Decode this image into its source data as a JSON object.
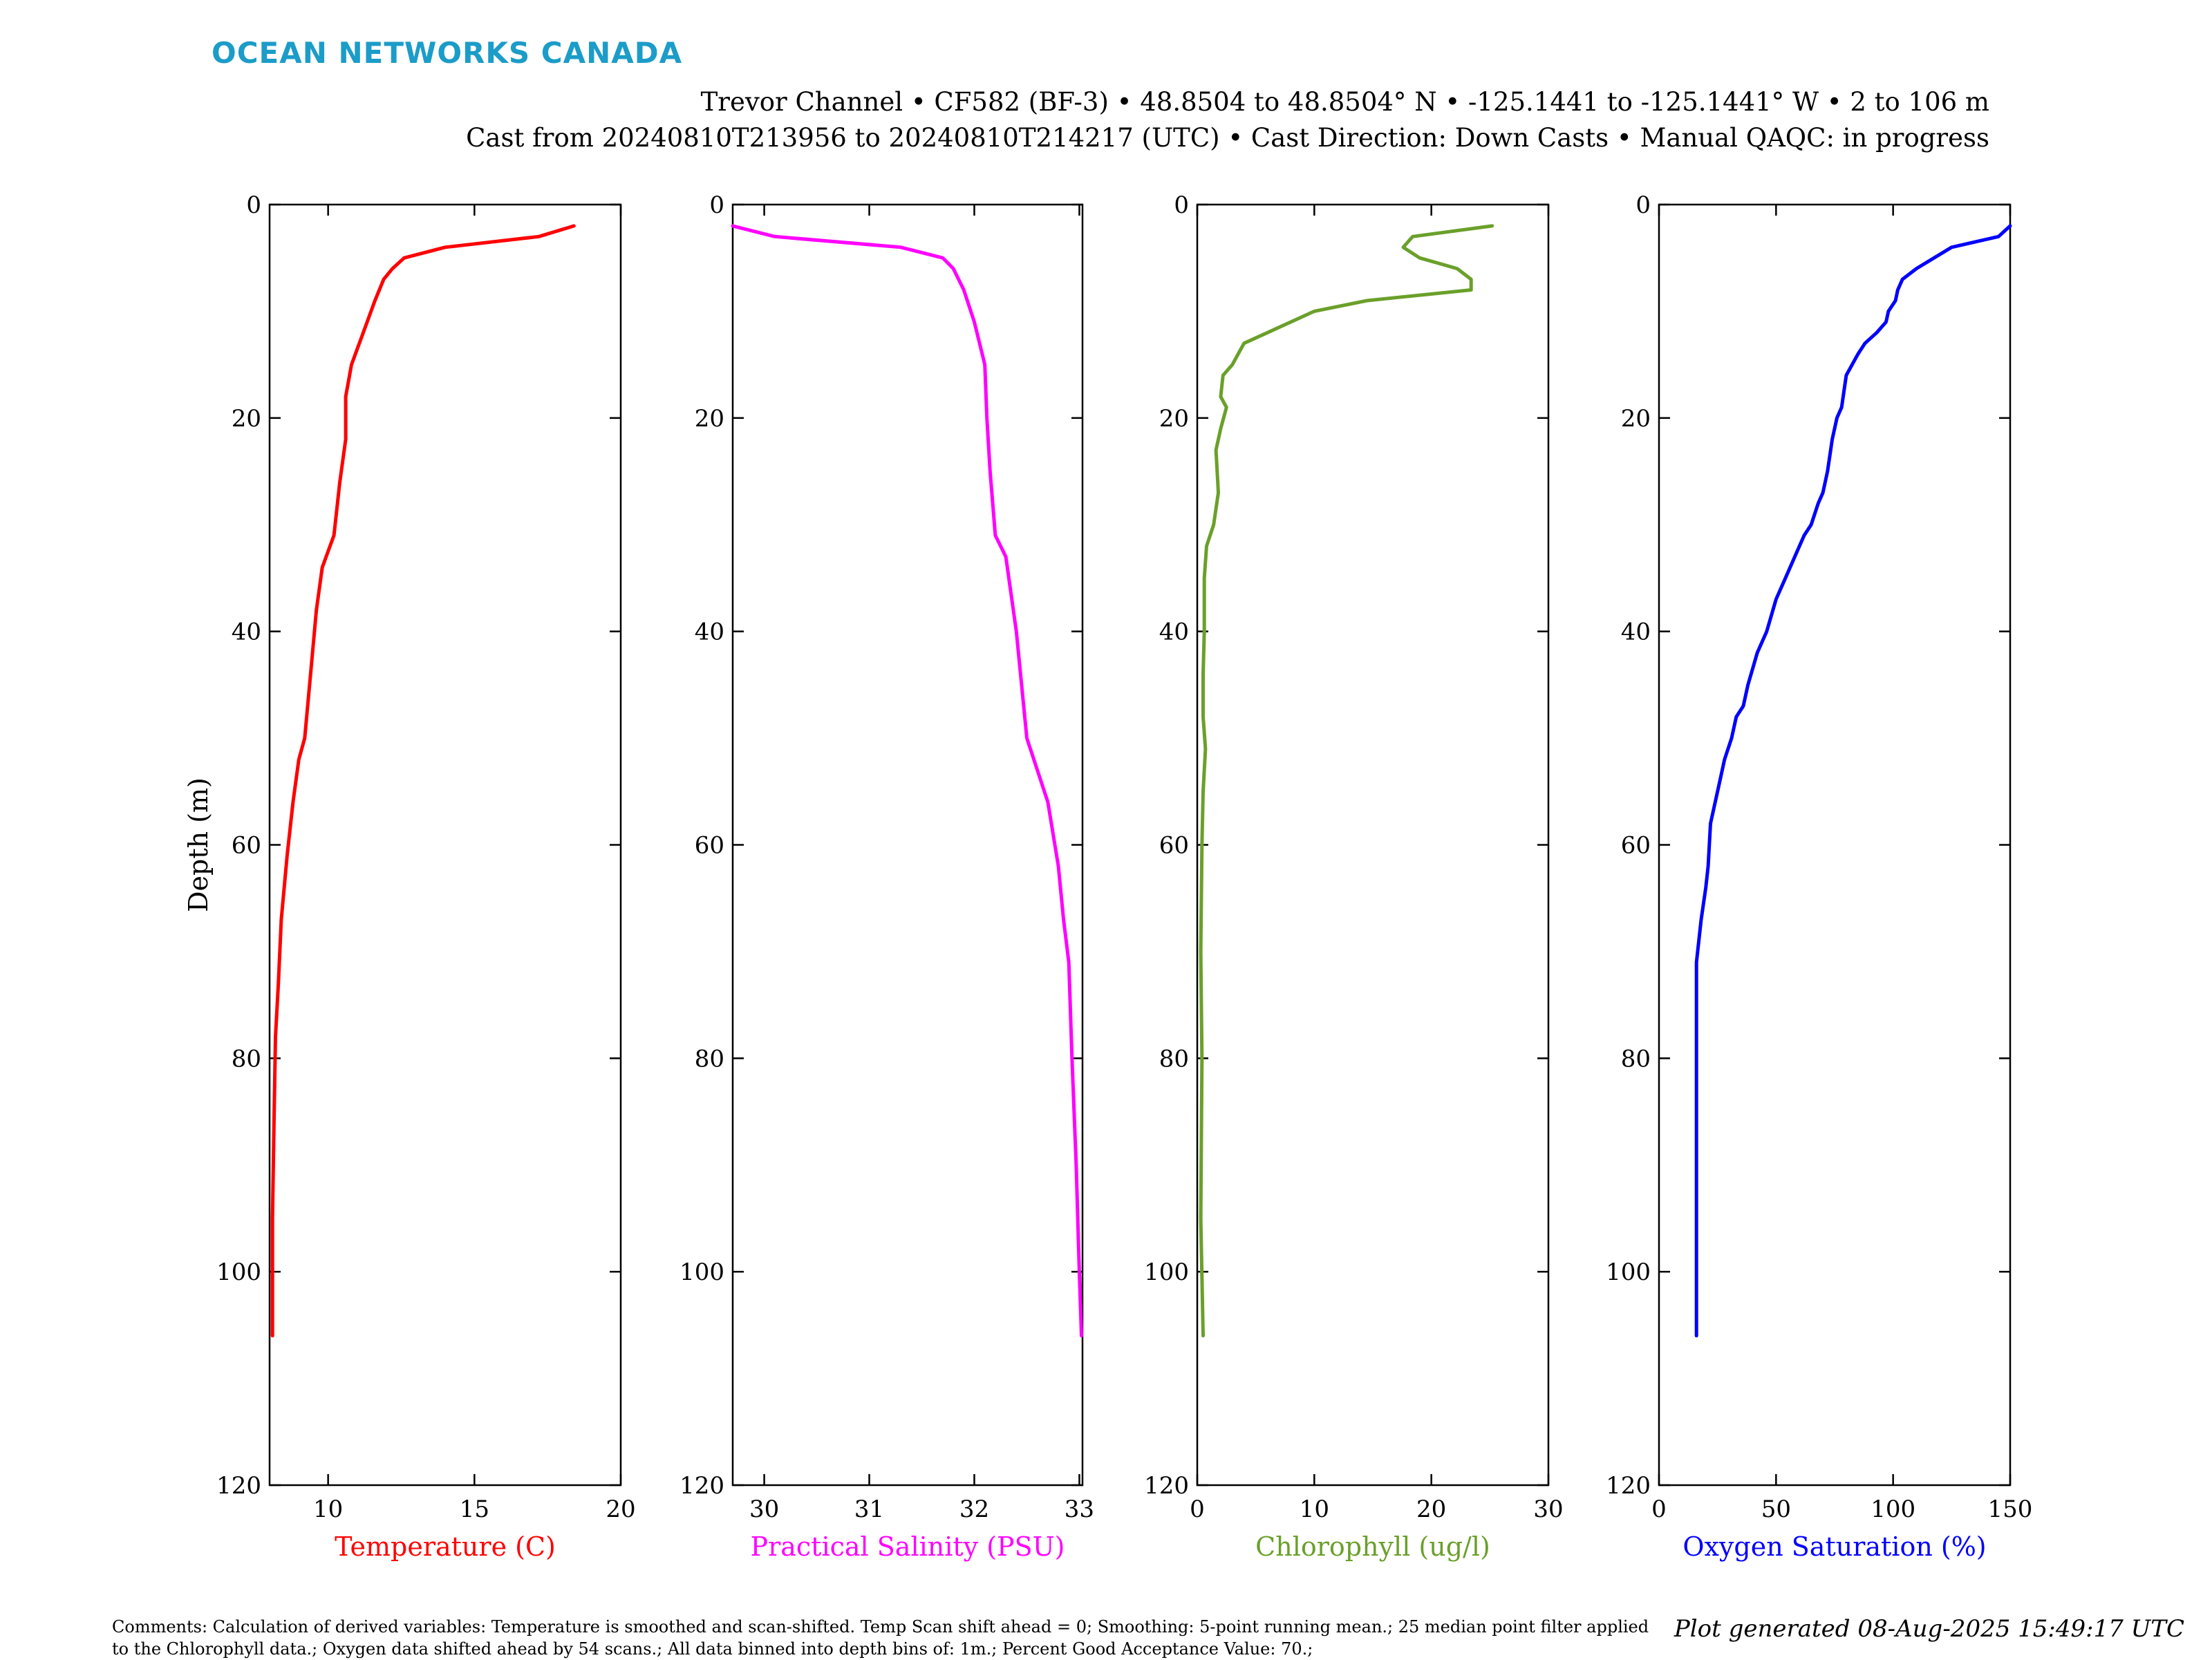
{
  "brand": "OCEAN NETWORKS CANADA",
  "title_line1": "Trevor Channel • CF582 (BF-3) • 48.8504 to 48.8504° N • -125.1441 to -125.1441° W • 2 to 106 m",
  "title_line2": "Cast from 20240810T213956 to 20240810T214217 (UTC) • Cast Direction: Down Casts • Manual QAQC: in progress",
  "comments": "Comments: Calculation of derived variables: Temperature is smoothed and scan-shifted. Temp Scan shift ahead = 0; Smoothing: 5-point running mean.; 25 median point filter applied to the Chlorophyll data.; Oxygen data shifted ahead by 54 scans.; All data binned into depth bins of: 1m.; Percent Good Acceptance Value: 70.;",
  "generated": "Plot generated 08-Aug-2025 15:49:17 UTC",
  "chart_data": [
    {
      "type": "line",
      "ylabel": "Depth (m)",
      "xlabel": "Temperature (C)",
      "color": "#ff0000",
      "xlim": [
        8,
        20
      ],
      "ylim": [
        0,
        120
      ],
      "y_reversed": true,
      "xticks": [
        10,
        15,
        20
      ],
      "yticks": [
        0,
        20,
        40,
        60,
        80,
        100,
        120
      ],
      "x": [
        18.4,
        17.2,
        14.0,
        12.6,
        12.2,
        11.9,
        11.6,
        11.2,
        10.8,
        10.6,
        10.6,
        10.4,
        10.2,
        9.8,
        9.6,
        9.4,
        9.2,
        9.0,
        8.8,
        8.6,
        8.4,
        8.3,
        8.2,
        8.15,
        8.1,
        8.1
      ],
      "y": [
        2,
        3,
        4,
        5,
        6,
        7,
        9,
        12,
        15,
        18,
        22,
        26,
        31,
        34,
        38,
        44,
        50,
        52,
        56,
        61,
        67,
        73,
        78,
        86,
        95,
        106
      ]
    },
    {
      "type": "line",
      "ylabel": "",
      "xlabel": "Practical Salinity (PSU)",
      "color": "#ff00ff",
      "xlim": [
        29.7,
        33.03
      ],
      "ylim": [
        0,
        120
      ],
      "y_reversed": true,
      "xticks": [
        30,
        31,
        32,
        33
      ],
      "yticks": [
        0,
        20,
        40,
        60,
        80,
        100,
        120
      ],
      "x": [
        29.7,
        30.1,
        31.3,
        31.7,
        31.8,
        31.9,
        32.0,
        32.1,
        32.12,
        32.15,
        32.2,
        32.3,
        32.4,
        32.45,
        32.5,
        32.6,
        32.7,
        32.8,
        32.85,
        32.9,
        32.93,
        32.97,
        33.0,
        33.02
      ],
      "y": [
        2,
        3,
        4,
        5,
        6,
        8,
        11,
        15,
        20,
        25,
        31,
        33,
        40,
        45,
        50,
        53,
        56,
        62,
        67,
        71,
        80,
        90,
        100,
        106
      ]
    },
    {
      "type": "line",
      "ylabel": "",
      "xlabel": "Chlorophyll (ug/l)",
      "color": "#6aa02a",
      "xlim": [
        0,
        30
      ],
      "ylim": [
        0,
        120
      ],
      "y_reversed": true,
      "xticks": [
        0,
        10,
        20,
        30
      ],
      "yticks": [
        0,
        20,
        40,
        60,
        80,
        100,
        120
      ],
      "x": [
        25.2,
        18.4,
        17.6,
        19.0,
        22.2,
        23.4,
        23.4,
        14.5,
        10.0,
        6.0,
        4.0,
        3.0,
        2.2,
        2.0,
        2.5,
        2.0,
        1.6,
        1.8,
        1.4,
        0.8,
        0.6,
        0.6,
        0.5,
        0.5,
        0.7,
        0.5,
        0.4,
        0.3,
        0.4,
        0.3,
        0.5
      ],
      "y": [
        2,
        3,
        4,
        5,
        6,
        7,
        8,
        9,
        10,
        12,
        13,
        15,
        16,
        18,
        19,
        21,
        23,
        27,
        30,
        32,
        35,
        40,
        44,
        48,
        51,
        55,
        60,
        70,
        80,
        95,
        106
      ]
    },
    {
      "type": "line",
      "ylabel": "",
      "xlabel": "Oxygen Saturation (%)",
      "color": "#0000ff",
      "xlim": [
        0,
        150
      ],
      "ylim": [
        0,
        120
      ],
      "y_reversed": true,
      "xticks": [
        0,
        50,
        100,
        150
      ],
      "yticks": [
        0,
        20,
        40,
        60,
        80,
        100,
        120
      ],
      "x": [
        150,
        145,
        125,
        110,
        104,
        102,
        101,
        98,
        97,
        93,
        88,
        85,
        80,
        78,
        76,
        74,
        72,
        70,
        68,
        65,
        62,
        58,
        54,
        50,
        46,
        42,
        38,
        36,
        33,
        31,
        28,
        26,
        24,
        22,
        21,
        20,
        18,
        16,
        16,
        16
      ],
      "y": [
        2,
        3,
        4,
        6,
        7,
        8,
        9,
        10,
        11,
        12,
        13,
        14,
        16,
        19,
        20,
        22,
        25,
        27,
        28,
        30,
        31,
        33,
        35,
        37,
        40,
        42,
        45,
        47,
        48,
        50,
        52,
        54,
        56,
        58,
        62,
        64,
        67,
        71,
        80,
        106
      ]
    }
  ]
}
